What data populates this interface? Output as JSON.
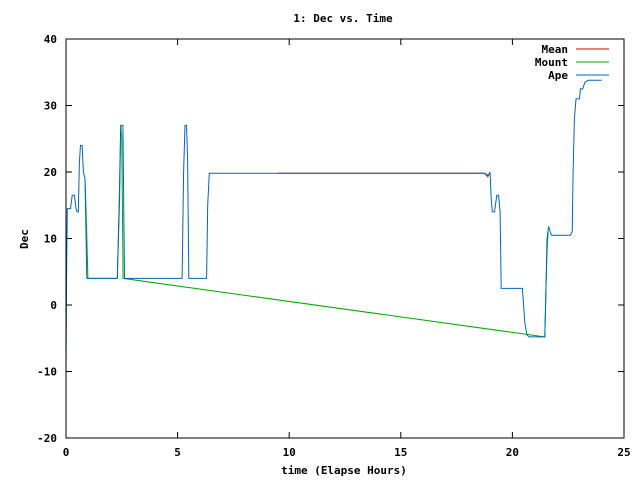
{
  "chart_data": {
    "type": "line",
    "title": "1: Dec vs. Time",
    "xlabel": "time (Elapse Hours)",
    "ylabel": "Dec",
    "xlim": [
      0,
      25
    ],
    "ylim": [
      -20,
      40
    ],
    "x_ticks": [
      0,
      5,
      10,
      15,
      20,
      25
    ],
    "y_ticks": [
      -20,
      -10,
      0,
      10,
      20,
      30,
      40
    ],
    "grid": false,
    "legend_position": "top-right",
    "series": [
      {
        "name": "Mean",
        "color": "#cc0000",
        "points": [
          [
            9.5,
            19.8
          ],
          [
            18.75,
            19.8
          ],
          [
            18.9,
            19.3
          ],
          [
            19.0,
            20.0
          ]
        ]
      },
      {
        "name": "Mount",
        "color": "#00aa00",
        "points": [
          [
            0.85,
            19.0
          ],
          [
            0.92,
            12.0
          ],
          [
            0.98,
            4.0
          ],
          [
            2.3,
            4.0
          ],
          [
            2.38,
            15.0
          ],
          [
            2.45,
            27.0
          ],
          [
            2.5,
            25.0
          ],
          [
            2.56,
            4.0
          ],
          [
            21.45,
            -4.8
          ],
          [
            21.5,
            2.0
          ],
          [
            21.55,
            8.0
          ],
          [
            21.6,
            11.0
          ]
        ]
      },
      {
        "name": "Ape",
        "color": "#0066bb",
        "points": [
          [
            0.0,
            -9.5
          ],
          [
            0.03,
            6.5
          ],
          [
            0.06,
            14.5
          ],
          [
            0.2,
            14.5
          ],
          [
            0.28,
            16.5
          ],
          [
            0.38,
            16.5
          ],
          [
            0.45,
            14.5
          ],
          [
            0.5,
            14.0
          ],
          [
            0.55,
            14.0
          ],
          [
            0.6,
            21.5
          ],
          [
            0.65,
            24.0
          ],
          [
            0.72,
            24.0
          ],
          [
            0.78,
            20.0
          ],
          [
            0.85,
            19.0
          ],
          [
            0.93,
            4.0
          ],
          [
            2.3,
            4.0
          ],
          [
            2.4,
            16.0
          ],
          [
            2.45,
            27.0
          ],
          [
            2.55,
            27.0
          ],
          [
            2.62,
            4.0
          ],
          [
            5.2,
            4.0
          ],
          [
            5.27,
            20.0
          ],
          [
            5.33,
            27.0
          ],
          [
            5.4,
            27.0
          ],
          [
            5.45,
            22.0
          ],
          [
            5.5,
            4.0
          ],
          [
            6.3,
            4.0
          ],
          [
            6.35,
            15.0
          ],
          [
            6.42,
            19.8
          ],
          [
            18.75,
            19.8
          ],
          [
            18.9,
            19.5
          ],
          [
            19.0,
            19.8
          ],
          [
            19.05,
            16.0
          ],
          [
            19.1,
            14.0
          ],
          [
            19.2,
            14.0
          ],
          [
            19.3,
            16.5
          ],
          [
            19.38,
            16.5
          ],
          [
            19.45,
            14.0
          ],
          [
            19.5,
            2.5
          ],
          [
            20.45,
            2.5
          ],
          [
            20.5,
            0.0
          ],
          [
            20.55,
            -2.5
          ],
          [
            20.65,
            -4.5
          ],
          [
            20.75,
            -4.8
          ],
          [
            21.45,
            -4.8
          ],
          [
            21.5,
            2.0
          ],
          [
            21.55,
            10.0
          ],
          [
            21.62,
            11.8
          ],
          [
            21.7,
            11.0
          ],
          [
            21.75,
            10.5
          ],
          [
            22.6,
            10.5
          ],
          [
            22.68,
            11.0
          ],
          [
            22.72,
            20.0
          ],
          [
            22.78,
            28.0
          ],
          [
            22.85,
            31.0
          ],
          [
            23.0,
            31.0
          ],
          [
            23.05,
            32.5
          ],
          [
            23.15,
            32.5
          ],
          [
            23.25,
            33.5
          ],
          [
            23.4,
            33.8
          ],
          [
            24.0,
            33.8
          ]
        ]
      }
    ]
  }
}
